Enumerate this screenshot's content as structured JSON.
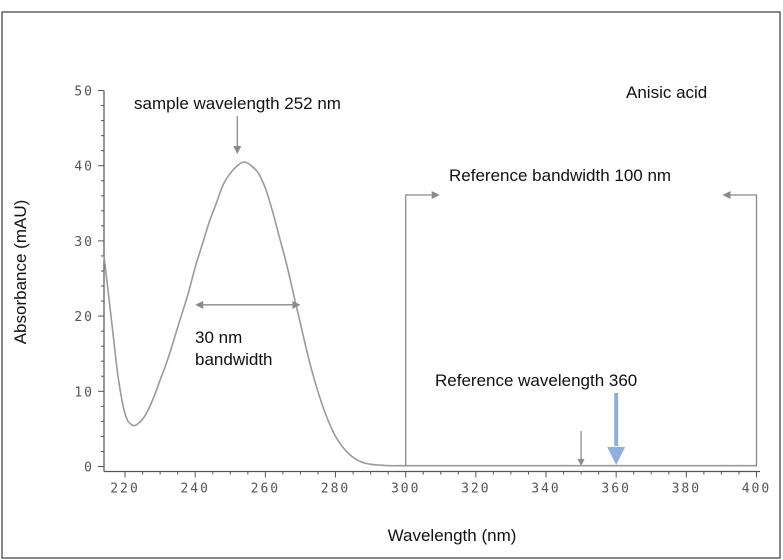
{
  "chart_data": {
    "type": "line",
    "title": "",
    "xlabel": "Wavelength (nm)",
    "ylabel": "Absorbance (mAU)",
    "xlim": [
      214,
      401
    ],
    "ylim": [
      -1,
      51
    ],
    "xticks": [
      {
        "value": 220,
        "label": "220"
      },
      {
        "value": 240,
        "label": "240"
      },
      {
        "value": 260,
        "label": "260"
      },
      {
        "value": 280,
        "label": "280"
      },
      {
        "value": 300,
        "label": "300"
      },
      {
        "value": 320,
        "label": "320"
      },
      {
        "value": 340,
        "label": "340"
      },
      {
        "value": 360,
        "label": "360"
      },
      {
        "value": 380,
        "label": "380"
      },
      {
        "value": 400,
        "label": "400"
      }
    ],
    "yticks": [
      {
        "value": 0,
        "label": "0"
      },
      {
        "value": 10,
        "label": "10"
      },
      {
        "value": 20,
        "label": "20"
      },
      {
        "value": 30,
        "label": "30"
      },
      {
        "value": 40,
        "label": "40"
      },
      {
        "value": 50,
        "label": "50"
      }
    ],
    "grid": false,
    "series": [
      {
        "color": "#9a9a9a",
        "x": [
          214,
          216,
          218,
          220,
          222,
          224,
          226,
          228,
          230,
          232,
          234,
          236,
          238,
          240,
          242,
          244,
          246,
          248,
          250,
          252,
          254,
          256,
          258,
          260,
          262,
          264,
          266,
          268,
          270,
          272,
          274,
          276,
          278,
          280,
          282,
          284,
          286,
          288,
          290,
          292,
          294,
          296,
          298,
          300,
          310,
          320,
          330,
          340,
          350,
          360,
          370,
          380,
          390,
          400
        ],
        "y": [
          28,
          20,
          12,
          7,
          5.5,
          5.8,
          7,
          9,
          11.5,
          14,
          17,
          20,
          23,
          26.5,
          29.5,
          32.5,
          35,
          37.5,
          39,
          40,
          40.5,
          40,
          39,
          37,
          34,
          30.5,
          27,
          23,
          19,
          15,
          11.5,
          8.5,
          6,
          4,
          2.6,
          1.6,
          0.9,
          0.5,
          0.3,
          0.2,
          0.15,
          0.1,
          0.1,
          0.1,
          0.1,
          0.1,
          0.1,
          0.1,
          0.1,
          0.1,
          0.1,
          0.1,
          0.1,
          0.1
        ]
      }
    ],
    "annotations": {
      "compound": "Anisic acid",
      "sample_wavelength": {
        "text": "sample wavelength 252 nm",
        "x": 252
      },
      "bandwidth": {
        "line1": "30 nm",
        "line2": "bandwidth",
        "x_start": 240,
        "x_end": 270,
        "y": 21.5
      },
      "reference_bandwidth": {
        "text": "Reference bandwidth 100 nm",
        "x_start": 300,
        "x_end": 400
      },
      "reference_wavelength": {
        "text": "Reference wavelength 360",
        "x": 360,
        "color": "#8fb0dc"
      },
      "small_marker_x": 350
    }
  }
}
